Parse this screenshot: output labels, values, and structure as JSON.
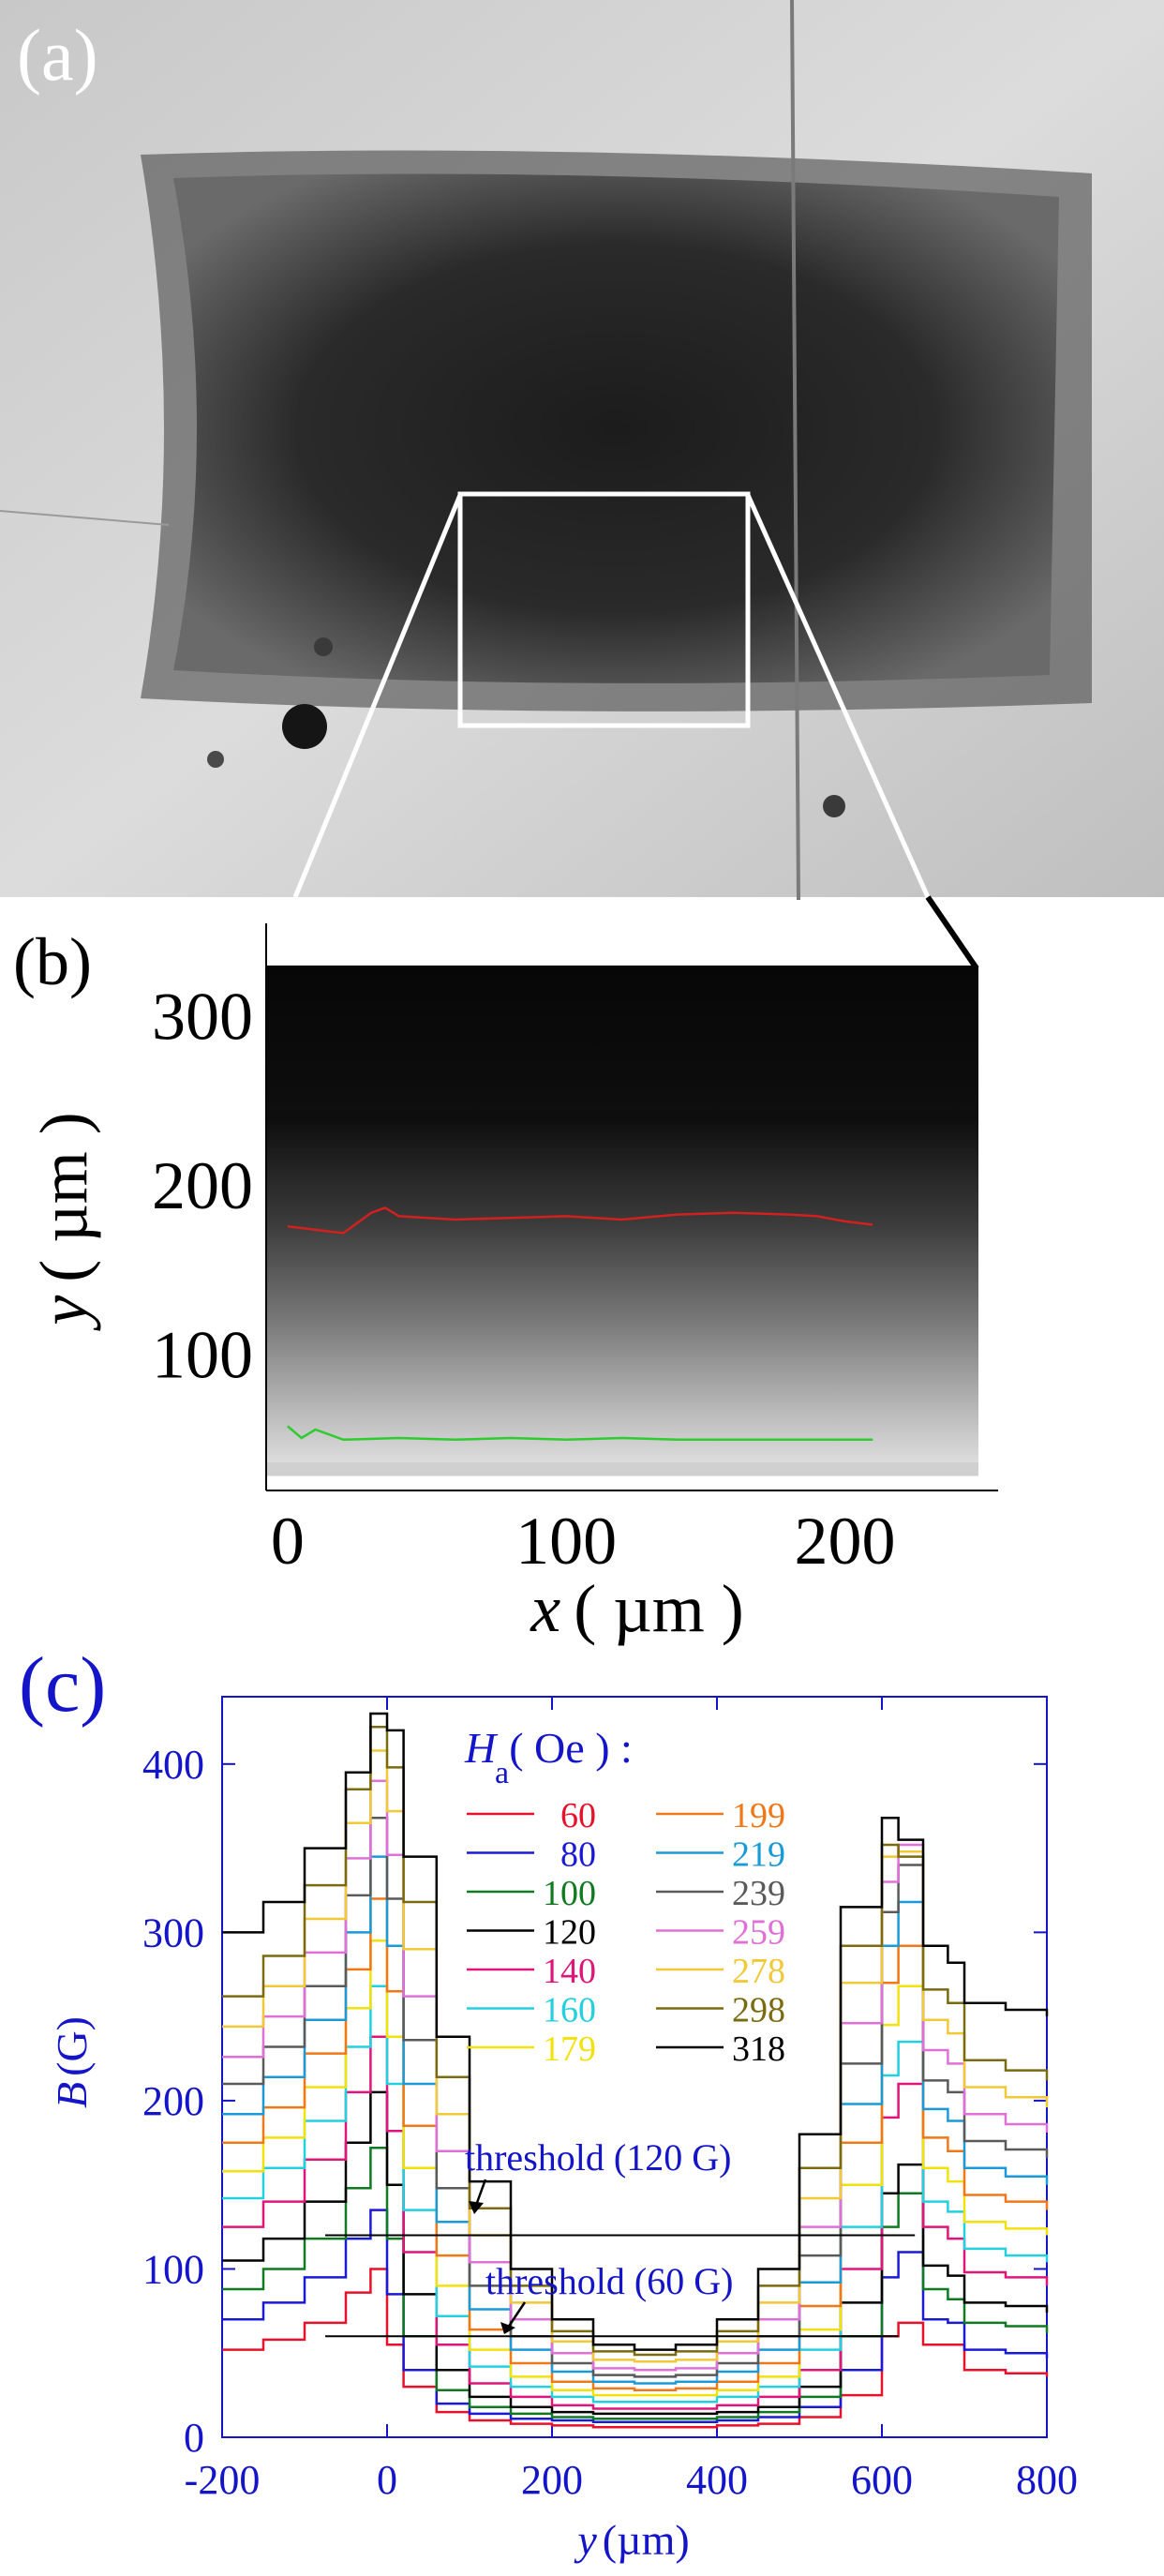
{
  "panel_a": {
    "label": "(a)"
  },
  "panel_b": {
    "label": "(b)",
    "xlabel_var": "x",
    "xlabel_unit": "( µm )",
    "ylabel_var": "y",
    "ylabel_unit": "( µm )",
    "x_ticks": [
      "0",
      "100",
      "200"
    ],
    "y_ticks": [
      "100",
      "200",
      "300"
    ]
  },
  "panel_c": {
    "label": "(c)",
    "ylabel_var": "B",
    "ylabel_unit": "(G)",
    "xlabel_var": "y",
    "xlabel_unit": "(µm)",
    "x_ticks": [
      "-200",
      "0",
      "200",
      "400",
      "600",
      "800"
    ],
    "y_ticks": [
      "0",
      "100",
      "200",
      "300",
      "400"
    ],
    "legend_title_var": "H",
    "legend_title_sub": "a",
    "legend_title_unit": "( Oe ) :",
    "threshold_120": "threshold (120 G)",
    "threshold_60": "threshold (60 G)"
  },
  "chart_data": [
    {
      "type": "line",
      "title": "",
      "xlabel": "x ( µm )",
      "ylabel": "y ( µm )",
      "xlim": [
        -5,
        255
      ],
      "ylim": [
        20,
        355
      ],
      "series": [
        {
          "color": "#d22020",
          "x": [
            0,
            10,
            20,
            30,
            35,
            40,
            60,
            80,
            100,
            120,
            140,
            160,
            180,
            190,
            200,
            210
          ],
          "y": [
            176,
            174,
            172,
            184,
            187,
            182,
            180,
            181,
            182,
            180,
            183,
            184,
            183,
            182,
            179,
            177
          ]
        },
        {
          "color": "#2ecc2e",
          "x": [
            0,
            5,
            10,
            20,
            40,
            60,
            80,
            100,
            120,
            140,
            160,
            180,
            200,
            210
          ],
          "y": [
            58,
            51,
            56,
            50,
            51,
            50,
            51,
            50,
            51,
            50,
            50,
            50,
            50,
            50
          ]
        }
      ]
    },
    {
      "type": "line",
      "title": "",
      "xlabel": "y (µm)",
      "ylabel": "B (G)",
      "xlim": [
        -200,
        800
      ],
      "ylim": [
        0,
        440
      ],
      "x": [
        -200,
        -150,
        -100,
        -50,
        -20,
        0,
        20,
        60,
        100,
        150,
        200,
        250,
        300,
        350,
        400,
        450,
        500,
        550,
        600,
        620,
        650,
        680,
        700,
        750,
        800
      ],
      "series": [
        {
          "name": "60",
          "color": "#e8102a",
          "values": [
            52,
            58,
            68,
            86,
            100,
            55,
            30,
            15,
            10,
            8,
            7,
            6,
            6,
            6,
            7,
            8,
            12,
            25,
            60,
            68,
            55,
            55,
            40,
            38,
            36
          ]
        },
        {
          "name": "80",
          "color": "#1a1ad6",
          "values": [
            70,
            80,
            95,
            118,
            135,
            85,
            40,
            20,
            14,
            11,
            10,
            9,
            9,
            9,
            10,
            12,
            18,
            40,
            95,
            110,
            70,
            68,
            52,
            50,
            47
          ]
        },
        {
          "name": "100",
          "color": "#0f7a20",
          "values": [
            88,
            100,
            118,
            148,
            172,
            118,
            60,
            28,
            18,
            14,
            12,
            11,
            11,
            11,
            12,
            15,
            24,
            60,
            125,
            145,
            88,
            82,
            68,
            66,
            62
          ]
        },
        {
          "name": "120",
          "color": "#000000",
          "values": [
            105,
            118,
            140,
            175,
            205,
            150,
            85,
            40,
            24,
            18,
            15,
            14,
            14,
            14,
            15,
            18,
            30,
            80,
            145,
            162,
            102,
            96,
            80,
            78,
            74
          ]
        },
        {
          "name": "140",
          "color": "#e0157a",
          "values": [
            125,
            140,
            165,
            205,
            238,
            182,
            110,
            55,
            32,
            24,
            19,
            17,
            17,
            17,
            19,
            24,
            40,
            100,
            190,
            210,
            125,
            118,
            98,
            95,
            90
          ]
        },
        {
          "name": "160",
          "color": "#22d0e0",
          "values": [
            142,
            160,
            188,
            232,
            268,
            210,
            135,
            72,
            42,
            30,
            24,
            21,
            21,
            21,
            24,
            30,
            52,
            125,
            215,
            235,
            140,
            134,
            112,
            108,
            104
          ]
        },
        {
          "name": "179",
          "color": "#f2e20c",
          "values": [
            158,
            178,
            208,
            255,
            295,
            238,
            160,
            90,
            52,
            36,
            28,
            25,
            25,
            25,
            28,
            36,
            64,
            150,
            245,
            268,
            160,
            152,
            128,
            124,
            120
          ]
        },
        {
          "name": "199",
          "color": "#f07818",
          "values": [
            175,
            196,
            228,
            278,
            320,
            265,
            185,
            108,
            64,
            44,
            33,
            29,
            28,
            29,
            33,
            44,
            78,
            175,
            270,
            292,
            178,
            170,
            144,
            140,
            135
          ]
        },
        {
          "name": "219",
          "color": "#1a9ad8",
          "values": [
            192,
            214,
            248,
            300,
            345,
            292,
            210,
            128,
            76,
            52,
            39,
            33,
            32,
            33,
            39,
            52,
            92,
            198,
            292,
            318,
            195,
            188,
            160,
            155,
            150
          ]
        },
        {
          "name": "239",
          "color": "#5a5a5a",
          "values": [
            210,
            232,
            268,
            322,
            368,
            320,
            236,
            148,
            90,
            60,
            44,
            37,
            36,
            37,
            44,
            60,
            108,
            222,
            312,
            340,
            212,
            205,
            176,
            171,
            166
          ]
        },
        {
          "name": "259",
          "color": "#e070d8",
          "values": [
            226,
            250,
            288,
            344,
            390,
            346,
            262,
            170,
            104,
            70,
            50,
            41,
            40,
            41,
            50,
            70,
            125,
            246,
            330,
            352,
            230,
            222,
            192,
            186,
            181
          ]
        },
        {
          "name": "278",
          "color": "#f0c838",
          "values": [
            244,
            268,
            308,
            365,
            408,
            372,
            290,
            192,
            120,
            80,
            57,
            46,
            45,
            46,
            57,
            80,
            142,
            270,
            345,
            348,
            248,
            240,
            208,
            202,
            196
          ]
        },
        {
          "name": "298",
          "color": "#7a6a10",
          "values": [
            262,
            286,
            328,
            385,
            422,
            398,
            318,
            214,
            136,
            90,
            63,
            51,
            49,
            51,
            63,
            90,
            160,
            292,
            352,
            345,
            266,
            258,
            224,
            218,
            212
          ]
        },
        {
          "name": "318",
          "color": "#000000",
          "values": [
            300,
            318,
            350,
            395,
            430,
            420,
            345,
            238,
            152,
            100,
            70,
            55,
            52,
            55,
            70,
            100,
            180,
            315,
            368,
            355,
            292,
            282,
            258,
            254,
            250
          ]
        }
      ],
      "annotations": [
        {
          "text": "threshold (120 G)",
          "y": 120,
          "x_range": [
            -75,
            640
          ]
        },
        {
          "text": "threshold (60 G)",
          "y": 60,
          "x_range": [
            -75,
            620
          ]
        }
      ]
    }
  ]
}
